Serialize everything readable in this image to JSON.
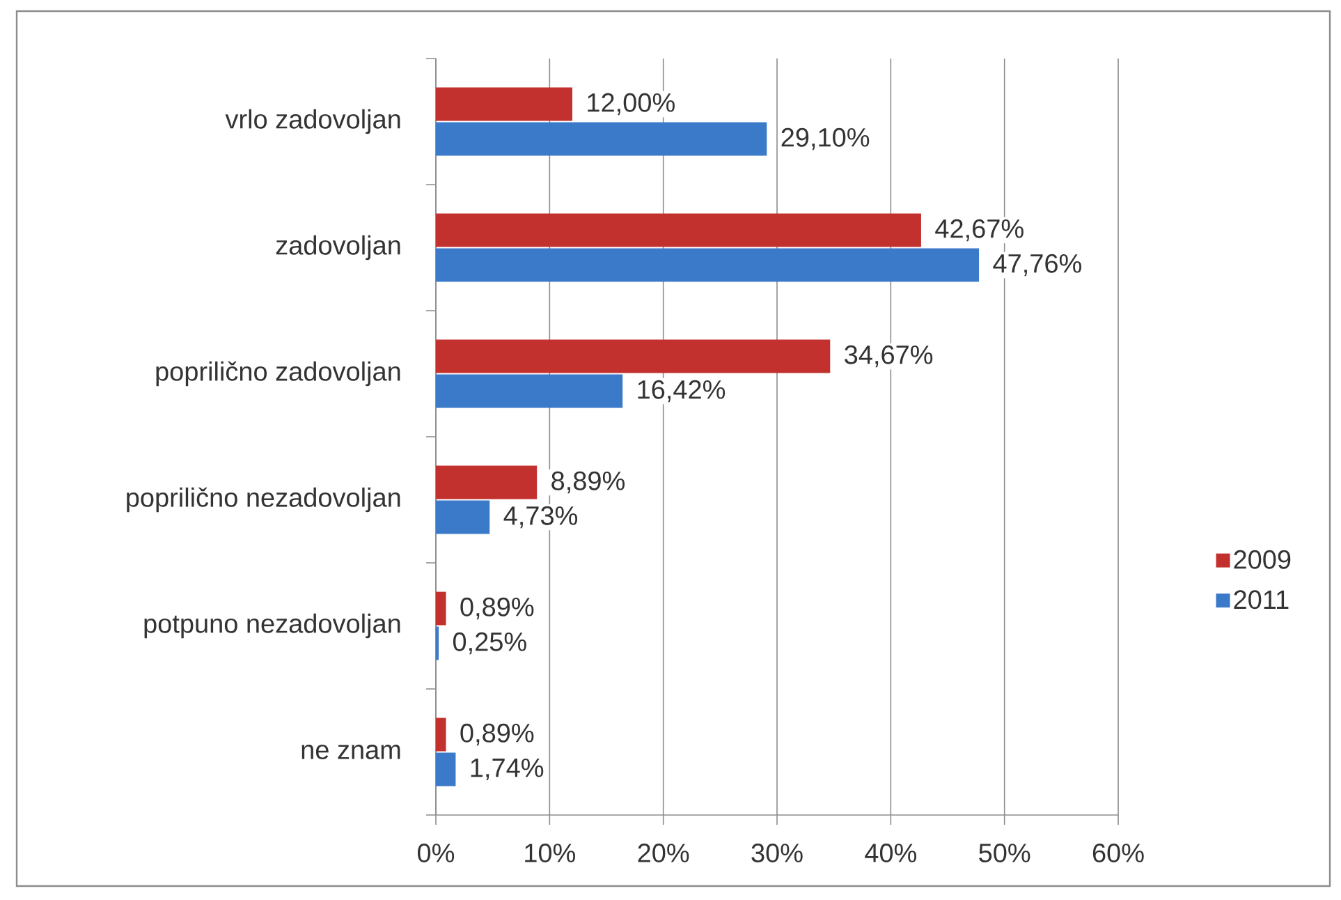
{
  "chart_data": {
    "type": "bar",
    "orientation": "horizontal",
    "categories": [
      "vrlo zadovoljan",
      "zadovoljan",
      "poprilično zadovoljan",
      "poprilično nezadovoljan",
      "potpuno nezadovoljan",
      "ne znam"
    ],
    "series": [
      {
        "name": "2009",
        "color": "#c3312e",
        "values": [
          12.0,
          42.67,
          34.67,
          8.89,
          0.89,
          0.89
        ],
        "value_labels": [
          "12,00%",
          "42,67%",
          "34,67%",
          "8,89%",
          "0,89%",
          "0,89%"
        ]
      },
      {
        "name": "2011",
        "color": "#3b79c9",
        "values": [
          29.1,
          47.76,
          16.42,
          4.73,
          0.25,
          1.74
        ],
        "value_labels": [
          "29,10%",
          "47,76%",
          "16,42%",
          "4,73%",
          "0,25%",
          "1,74%"
        ]
      }
    ],
    "xlim": [
      0,
      60
    ],
    "xticks": [
      {
        "value": 0,
        "label": "0%"
      },
      {
        "value": 10,
        "label": "10%"
      },
      {
        "value": 20,
        "label": "20%"
      },
      {
        "value": 30,
        "label": "30%"
      },
      {
        "value": 40,
        "label": "40%"
      },
      {
        "value": 50,
        "label": "50%"
      },
      {
        "value": 60,
        "label": "60%"
      }
    ],
    "grid": "x",
    "legend": "right"
  }
}
